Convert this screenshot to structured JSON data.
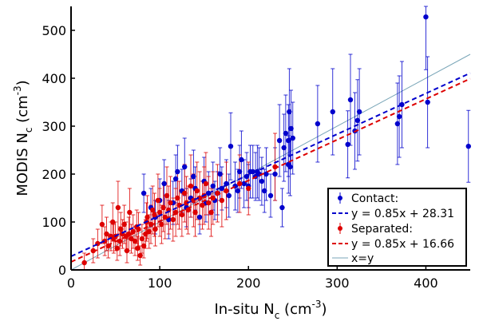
{
  "chart_data": {
    "type": "scatter",
    "xlabel": {
      "main": "In-situ N",
      "sub": "c",
      "unit": " (cm",
      "sup": "-3",
      "close": ")"
    },
    "ylabel": {
      "main": "MODIS N",
      "sub": "c",
      "unit": " (cm",
      "sup": "-3",
      "close": ")"
    },
    "xlim": [
      0,
      450
    ],
    "ylim": [
      0,
      550
    ],
    "xticks": [
      0,
      100,
      200,
      300,
      400
    ],
    "yticks": [
      0,
      100,
      200,
      300,
      400,
      500
    ],
    "grid": false,
    "legend_position": "bottom-right",
    "legend": {
      "contact": "Contact:",
      "contact_fit": "y = 0.85x + 28.31",
      "separated": "Separated:",
      "separated_fit": "y = 0.85x + 16.66",
      "identity": "x=y"
    },
    "series": [
      {
        "key": "contact",
        "color": "#0000cc",
        "fit": {
          "slope": 0.85,
          "intercept": 28.31
        },
        "points": [
          [
            82,
            160,
            40
          ],
          [
            90,
            130,
            40
          ],
          [
            95,
            110,
            35
          ],
          [
            100,
            145,
            45
          ],
          [
            105,
            180,
            50
          ],
          [
            110,
            105,
            40
          ],
          [
            115,
            140,
            45
          ],
          [
            118,
            190,
            50
          ],
          [
            120,
            205,
            55
          ],
          [
            125,
            165,
            45
          ],
          [
            128,
            215,
            60
          ],
          [
            130,
            130,
            40
          ],
          [
            135,
            150,
            40
          ],
          [
            138,
            195,
            55
          ],
          [
            140,
            170,
            45
          ],
          [
            145,
            110,
            35
          ],
          [
            150,
            185,
            50
          ],
          [
            152,
            140,
            40
          ],
          [
            155,
            160,
            45
          ],
          [
            160,
            175,
            50
          ],
          [
            162,
            145,
            40
          ],
          [
            165,
            160,
            45
          ],
          [
            168,
            200,
            55
          ],
          [
            170,
            170,
            45
          ],
          [
            175,
            180,
            50
          ],
          [
            178,
            155,
            45
          ],
          [
            180,
            258,
            70
          ],
          [
            185,
            175,
            50
          ],
          [
            188,
            165,
            45
          ],
          [
            190,
            205,
            55
          ],
          [
            192,
            230,
            60
          ],
          [
            195,
            180,
            50
          ],
          [
            198,
            195,
            50
          ],
          [
            200,
            175,
            45
          ],
          [
            202,
            205,
            55
          ],
          [
            205,
            205,
            55
          ],
          [
            208,
            195,
            50
          ],
          [
            210,
            205,
            55
          ],
          [
            212,
            200,
            55
          ],
          [
            215,
            185,
            50
          ],
          [
            218,
            165,
            45
          ],
          [
            220,
            200,
            55
          ],
          [
            225,
            155,
            45
          ],
          [
            230,
            200,
            55
          ],
          [
            235,
            270,
            75
          ],
          [
            238,
            130,
            40
          ],
          [
            240,
            255,
            70
          ],
          [
            242,
            285,
            80
          ],
          [
            245,
            220,
            60
          ],
          [
            245,
            270,
            75
          ],
          [
            246,
            330,
            90
          ],
          [
            247,
            215,
            60
          ],
          [
            248,
            295,
            80
          ],
          [
            250,
            275,
            75
          ],
          [
            278,
            305,
            80
          ],
          [
            295,
            330,
            90
          ],
          [
            312,
            262,
            70
          ],
          [
            315,
            355,
            95
          ],
          [
            320,
            290,
            80
          ],
          [
            323,
            312,
            85
          ],
          [
            325,
            330,
            90
          ],
          [
            368,
            305,
            85
          ],
          [
            370,
            320,
            85
          ],
          [
            373,
            345,
            90
          ],
          [
            400,
            528,
            110
          ],
          [
            402,
            350,
            95
          ],
          [
            448,
            258,
            75
          ]
        ]
      },
      {
        "key": "separated",
        "color": "#dd0000",
        "fit": {
          "slope": 0.85,
          "intercept": 16.66
        },
        "points": [
          [
            15,
            15,
            20
          ],
          [
            25,
            40,
            25
          ],
          [
            30,
            55,
            30
          ],
          [
            35,
            95,
            40
          ],
          [
            38,
            60,
            30
          ],
          [
            40,
            75,
            35
          ],
          [
            42,
            50,
            25
          ],
          [
            45,
            70,
            30
          ],
          [
            47,
            100,
            40
          ],
          [
            48,
            65,
            30
          ],
          [
            50,
            70,
            30
          ],
          [
            52,
            45,
            25
          ],
          [
            53,
            130,
            55
          ],
          [
            55,
            60,
            30
          ],
          [
            56,
            85,
            35
          ],
          [
            58,
            75,
            30
          ],
          [
            60,
            95,
            40
          ],
          [
            62,
            70,
            30
          ],
          [
            63,
            40,
            25
          ],
          [
            65,
            75,
            35
          ],
          [
            66,
            120,
            50
          ],
          [
            68,
            65,
            30
          ],
          [
            70,
            80,
            35
          ],
          [
            72,
            60,
            30
          ],
          [
            74,
            90,
            35
          ],
          [
            75,
            45,
            25
          ],
          [
            76,
            85,
            35
          ],
          [
            78,
            30,
            20
          ],
          [
            80,
            65,
            30
          ],
          [
            82,
            50,
            25
          ],
          [
            84,
            75,
            30
          ],
          [
            85,
            100,
            40
          ],
          [
            86,
            110,
            45
          ],
          [
            88,
            80,
            35
          ],
          [
            90,
            95,
            40
          ],
          [
            92,
            125,
            50
          ],
          [
            94,
            115,
            45
          ],
          [
            95,
            85,
            35
          ],
          [
            98,
            145,
            55
          ],
          [
            100,
            120,
            50
          ],
          [
            102,
            95,
            40
          ],
          [
            104,
            130,
            50
          ],
          [
            106,
            110,
            45
          ],
          [
            108,
            155,
            60
          ],
          [
            110,
            125,
            50
          ],
          [
            112,
            140,
            55
          ],
          [
            115,
            105,
            45
          ],
          [
            118,
            120,
            50
          ],
          [
            120,
            150,
            55
          ],
          [
            122,
            135,
            50
          ],
          [
            125,
            115,
            45
          ],
          [
            128,
            160,
            60
          ],
          [
            130,
            140,
            55
          ],
          [
            132,
            125,
            50
          ],
          [
            135,
            175,
            65
          ],
          [
            138,
            145,
            55
          ],
          [
            140,
            120,
            50
          ],
          [
            142,
            165,
            60
          ],
          [
            145,
            150,
            55
          ],
          [
            148,
            135,
            50
          ],
          [
            150,
            155,
            60
          ],
          [
            152,
            180,
            65
          ],
          [
            155,
            140,
            55
          ],
          [
            158,
            120,
            50
          ],
          [
            160,
            150,
            55
          ],
          [
            165,
            160,
            60
          ],
          [
            170,
            145,
            55
          ],
          [
            175,
            165,
            60
          ],
          [
            190,
            180,
            60
          ],
          [
            200,
            170,
            55
          ],
          [
            230,
            215,
            70
          ]
        ]
      }
    ]
  }
}
